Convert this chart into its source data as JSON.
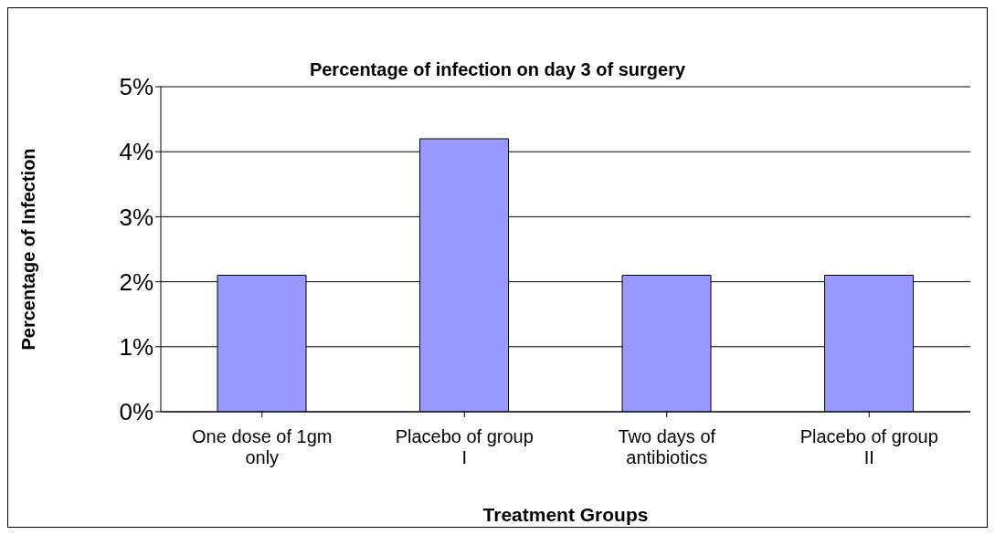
{
  "chart_data": {
    "type": "bar",
    "title": "Percentage of infection on day 3 of surgery",
    "xlabel": "Treatment Groups",
    "ylabel": "Percentage of Infection",
    "categories": [
      "One dose of 1gm only",
      "Placebo of group I",
      "Two days of antibiotics",
      "Placebo of group II"
    ],
    "values": [
      2.1,
      4.2,
      2.1,
      2.1
    ],
    "color": "#9999ff",
    "ylim": [
      0,
      5
    ],
    "yticks": [
      {
        "value": 0,
        "label": "0%"
      },
      {
        "value": 1,
        "label": "1%"
      },
      {
        "value": 2,
        "label": "2%"
      },
      {
        "value": 3,
        "label": "3%"
      },
      {
        "value": 4,
        "label": "4%"
      },
      {
        "value": 5,
        "label": "5%"
      }
    ],
    "grid": "y",
    "legend": false
  }
}
